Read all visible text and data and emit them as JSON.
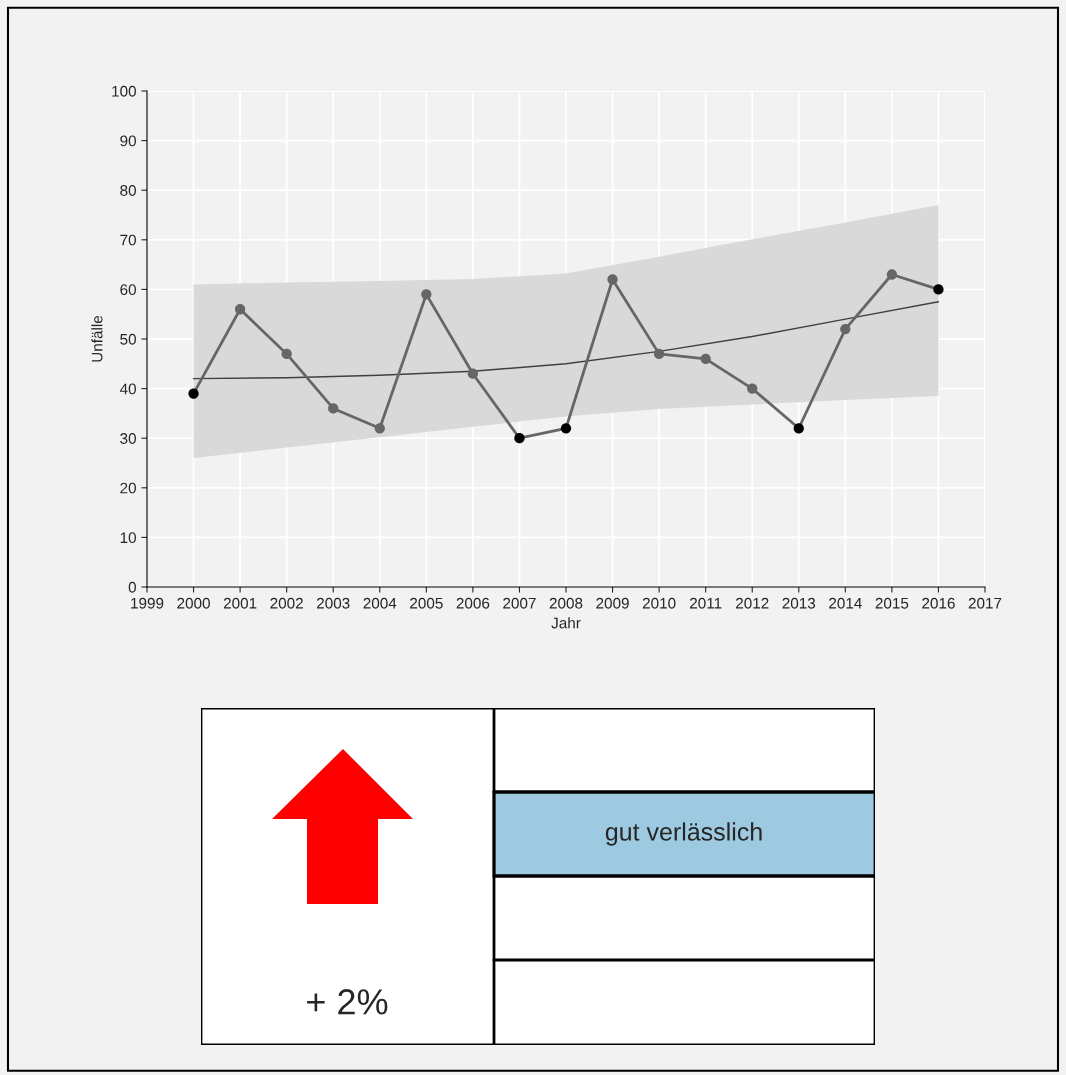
{
  "chart_data": [
    {
      "type": "line",
      "xlabel": "Jahr",
      "ylabel": "Unfälle",
      "xlim": [
        1999,
        2017
      ],
      "xticks": [
        1999,
        2000,
        2001,
        2002,
        2003,
        2004,
        2005,
        2006,
        2007,
        2008,
        2009,
        2010,
        2011,
        2012,
        2013,
        2014,
        2015,
        2016,
        2017
      ],
      "ylim": [
        0,
        100
      ],
      "yticks": [
        0,
        10,
        20,
        30,
        40,
        50,
        60,
        70,
        80,
        90,
        100
      ],
      "grid": true,
      "series": [
        {
          "type": "line",
          "color": "#404040",
          "marker": "none",
          "x": [
            2000,
            2002,
            2004,
            2006,
            2008,
            2010,
            2012,
            2014,
            2016
          ],
          "values": [
            42,
            42.2,
            42.7,
            43.5,
            45,
            47.5,
            50.5,
            54,
            57.5
          ],
          "lower": [
            26,
            28.1,
            30.2,
            32.3,
            34.4,
            35.9,
            36.8,
            37.7,
            38.5
          ],
          "upper": [
            61,
            61.4,
            61.7,
            62.1,
            63.2,
            66.6,
            70.1,
            73.5,
            77
          ]
        },
        {
          "type": "line",
          "color": "#666666",
          "marker": "circle",
          "x": [
            2000,
            2001,
            2002,
            2003,
            2004,
            2005,
            2006,
            2007,
            2008,
            2009,
            2010,
            2011,
            2012,
            2013,
            2014,
            2015,
            2016
          ],
          "values": [
            39,
            56,
            47,
            36,
            32,
            59,
            43,
            30,
            32,
            62,
            47,
            46,
            40,
            32,
            52,
            63,
            60
          ],
          "colors": [
            "#000000",
            "#666666",
            "#666666",
            "#666666",
            "#666666",
            "#666666",
            "#666666",
            "#000000",
            "#000000",
            "#666666",
            "#666666",
            "#666666",
            "#666666",
            "#000000",
            "#666666",
            "#666666",
            "#000000"
          ]
        }
      ]
    },
    {
      "type": "other",
      "annotations": [
        "+ 2%",
        "gut verlässlich"
      ]
    }
  ]
}
